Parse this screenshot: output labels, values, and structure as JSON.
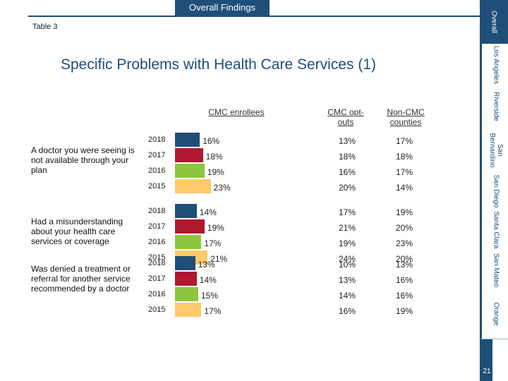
{
  "header": {
    "tab_label": "Overall Findings",
    "table_label": "Table 3",
    "title": "Specific Problems with Health Care Services (1)"
  },
  "columns": {
    "cmc_enrollees": "CMC enrollees",
    "cmc_optouts": "CMC opt-outs",
    "non_cmc": "Non-CMC counties"
  },
  "side_nav": [
    "Overall",
    "Los Angeles",
    "Riverside",
    "San Bernardino",
    "San Diego",
    "Santa Clara",
    "San Mateo",
    "Orange"
  ],
  "page_number": "21",
  "colors": {
    "y2018": "#1f4e79",
    "y2017": "#b0182f",
    "y2016": "#8cc63f",
    "y2015": "#fcc96b",
    "accent": "#1f4e79"
  },
  "chart_data": {
    "type": "bar",
    "orientation": "horizontal",
    "years": [
      "2018",
      "2017",
      "2016",
      "2015"
    ],
    "rows": [
      {
        "label": "A doctor you were seeing is not available through your plan",
        "cmc_enrollees": [
          16,
          18,
          19,
          23
        ],
        "cmc_enrollees_labels": [
          "16%",
          "18%",
          "19%",
          "23%"
        ],
        "cmc_optouts": [
          "13%",
          "18%",
          "16%",
          "20%"
        ],
        "non_cmc": [
          "17%",
          "18%",
          "17%",
          "14%"
        ]
      },
      {
        "label": "Had a misunderstanding about your health care services or coverage",
        "cmc_enrollees": [
          14,
          19,
          17,
          21
        ],
        "cmc_enrollees_labels": [
          "14%",
          "19%",
          "17%",
          "21%"
        ],
        "cmc_optouts": [
          "17%",
          "21%",
          "19%",
          "24%"
        ],
        "non_cmc": [
          "19%",
          "20%",
          "23%",
          "20%"
        ]
      },
      {
        "label": "Was denied a treatment or referral for another service recommended by a doctor",
        "cmc_enrollees": [
          13,
          14,
          15,
          17
        ],
        "cmc_enrollees_labels": [
          "13%",
          "14%",
          "15%",
          "17%"
        ],
        "cmc_optouts": [
          "10%",
          "13%",
          "14%",
          "16%"
        ],
        "non_cmc": [
          "13%",
          "16%",
          "16%",
          "19%"
        ]
      }
    ]
  }
}
